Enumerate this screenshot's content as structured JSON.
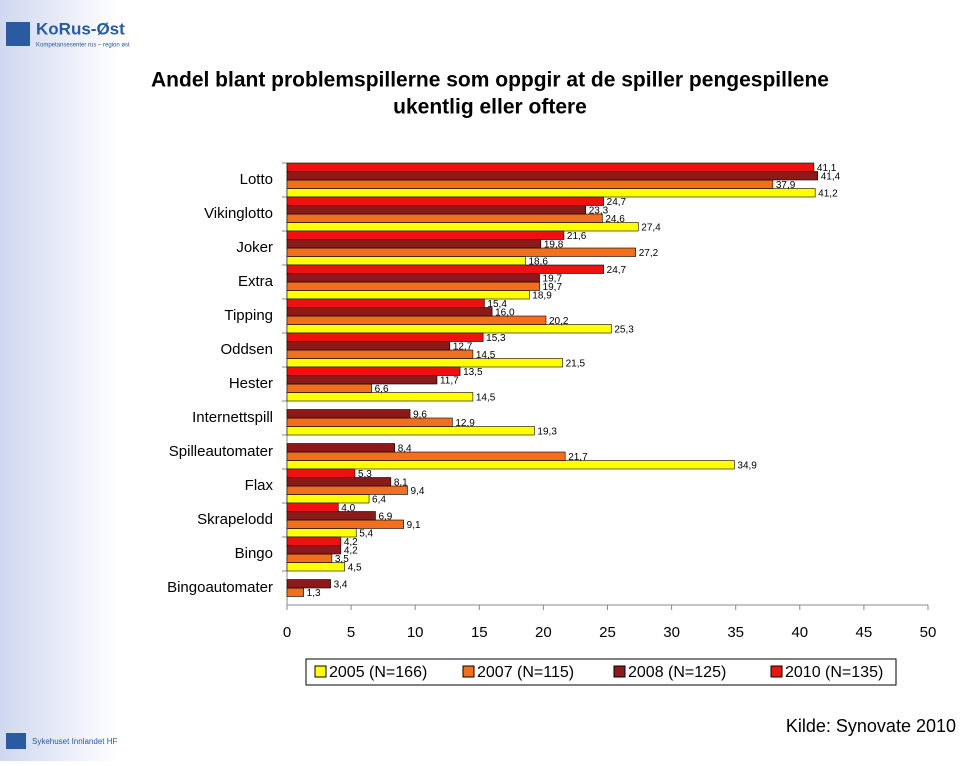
{
  "header": {
    "logo": "KoRus-Øst",
    "logo_sub": "Kompetansesenter rus – region øst"
  },
  "footer": {
    "org": "Sykehuset Innlandet HF",
    "source": "Kilde: Synovate 2010"
  },
  "chart_data": {
    "type": "hbar",
    "title": [
      "Andel blant problemspillerne som oppgir at de spiller pengespillene",
      "ukentlig eller oftere"
    ],
    "categories": [
      "Lotto",
      "Vikinglotto",
      "Joker",
      "Extra",
      "Tipping",
      "Oddsen",
      "Hester",
      "Internettspill",
      "Spilleautomater",
      "Flax",
      "Skrapelodd",
      "Bingo",
      "Bingoautomater"
    ],
    "series": [
      {
        "name": "2005 (N=166)",
        "color": "#ffff00",
        "values": [
          41.2,
          27.4,
          18.6,
          18.9,
          25.3,
          21.5,
          14.5,
          19.3,
          34.9,
          6.4,
          5.4,
          4.5,
          null
        ],
        "value_labels": [
          "41,2",
          "27,4",
          "18,6",
          "18,9",
          "25,3",
          "21,5",
          "14,5",
          "19,3",
          "34,9",
          "6,4",
          "5,4",
          "4,5",
          null
        ]
      },
      {
        "name": "2007 (N=115)",
        "color": "#f07020",
        "values": [
          37.9,
          24.6,
          27.2,
          19.7,
          20.2,
          14.5,
          6.6,
          12.9,
          21.7,
          9.4,
          9.1,
          3.5,
          1.3
        ],
        "value_labels": [
          "37,9",
          "24,6",
          "27,2",
          "19,7",
          "20,2",
          "14,5",
          "6,6",
          "12,9",
          "21,7",
          "9,4",
          "9,1",
          "3,5",
          "1,3"
        ]
      },
      {
        "name": "2008 (N=125)",
        "color": "#8b1a1a",
        "values": [
          41.4,
          23.3,
          19.8,
          19.7,
          16.0,
          12.7,
          11.7,
          9.6,
          8.4,
          8.1,
          6.9,
          4.2,
          3.4
        ],
        "value_labels": [
          "41,4",
          "23,3",
          "19,8",
          "19,7",
          "16,0",
          "12,7",
          "11,7",
          "9,6",
          "8,4",
          "8,1",
          "6,9",
          "4,2",
          "3,4"
        ]
      },
      {
        "name": "2010 (N=135)",
        "color": "#ee1111",
        "values": [
          41.1,
          24.7,
          21.6,
          24.7,
          15.4,
          15.3,
          13.5,
          null,
          null,
          5.3,
          4.0,
          4.2,
          null
        ],
        "value_labels": [
          "41,1",
          "24,7",
          "21,6",
          "24,7",
          "15,4",
          "15,3",
          "13,5",
          null,
          null,
          "5,3",
          "4,0",
          "4,2",
          null
        ]
      }
    ],
    "xlim": [
      0,
      50
    ],
    "xticks": [
      0,
      5,
      10,
      15,
      20,
      25,
      30,
      35,
      40,
      45,
      50
    ],
    "legend": "bottom"
  }
}
